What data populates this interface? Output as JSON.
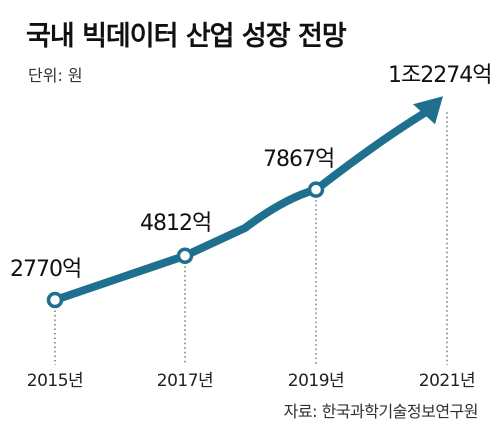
{
  "title": "국내 빅데이터 산업 성장 전망",
  "unit_label": "단위: 원",
  "source": "자료: 한국과학기술정보연구원",
  "colors": {
    "line": "#1f6f8f",
    "marker_fill": "#ffffff",
    "dotted": "#333333"
  },
  "chart_data": {
    "type": "line",
    "categories": [
      "2015년",
      "2017년",
      "2019년",
      "2021년"
    ],
    "values": [
      2770,
      4812,
      7867,
      12274
    ],
    "data_labels": [
      "2770억",
      "4812억",
      "7867억",
      "1조2274억"
    ],
    "markers": [
      true,
      true,
      true,
      false
    ],
    "end_arrow": true
  }
}
